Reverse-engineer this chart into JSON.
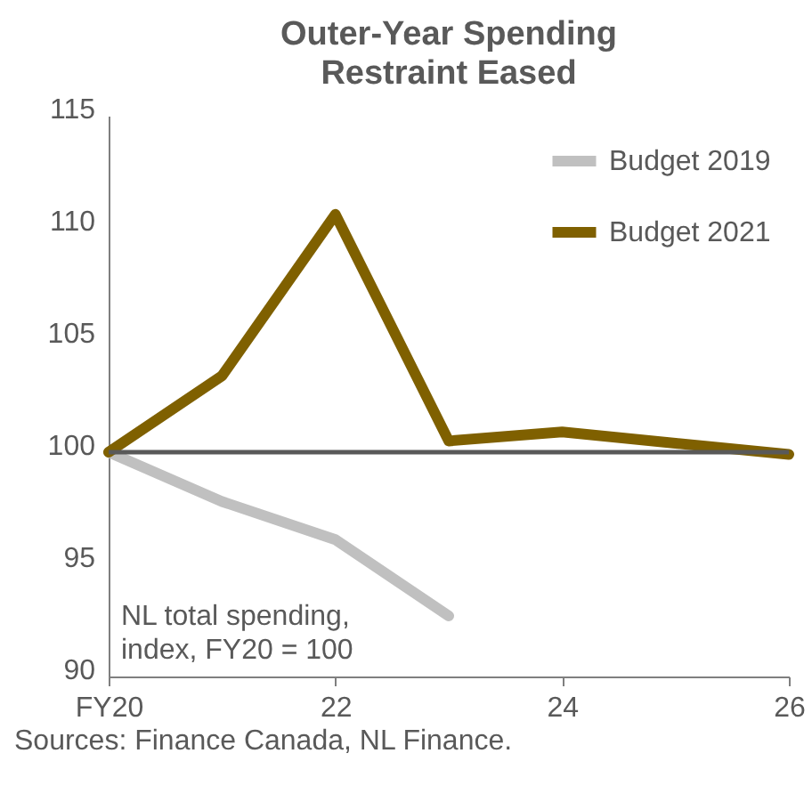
{
  "chart_data": {
    "type": "line",
    "title": "Outer-Year Spending Restraint Eased",
    "x": [
      20,
      21,
      22,
      23,
      24,
      25,
      26
    ],
    "series": [
      {
        "name": "Budget 2019",
        "color": "#c0c0c0",
        "values": [
          100,
          97.8,
          96.1,
          92.7,
          null,
          null,
          null
        ]
      },
      {
        "name": "Budget 2021",
        "color": "#7f6000",
        "values": [
          100,
          103.4,
          110.6,
          100.5,
          100.9,
          100.4,
          99.9
        ]
      }
    ],
    "xlim": [
      20,
      26
    ],
    "xticks": [
      {
        "value": 20,
        "label": "FY20"
      },
      22,
      24,
      26
    ],
    "ylim": [
      90,
      115
    ],
    "yticks": [
      90,
      95,
      100,
      105,
      110,
      115
    ],
    "ref_lines": [
      {
        "axis": "y",
        "value": 100,
        "color": "#595959"
      }
    ],
    "legend": "top right",
    "grid": false,
    "annotations": [
      "NL total spending,\nindex, FY20 = 100",
      "Sources: Finance Canada, NL Finance."
    ]
  }
}
